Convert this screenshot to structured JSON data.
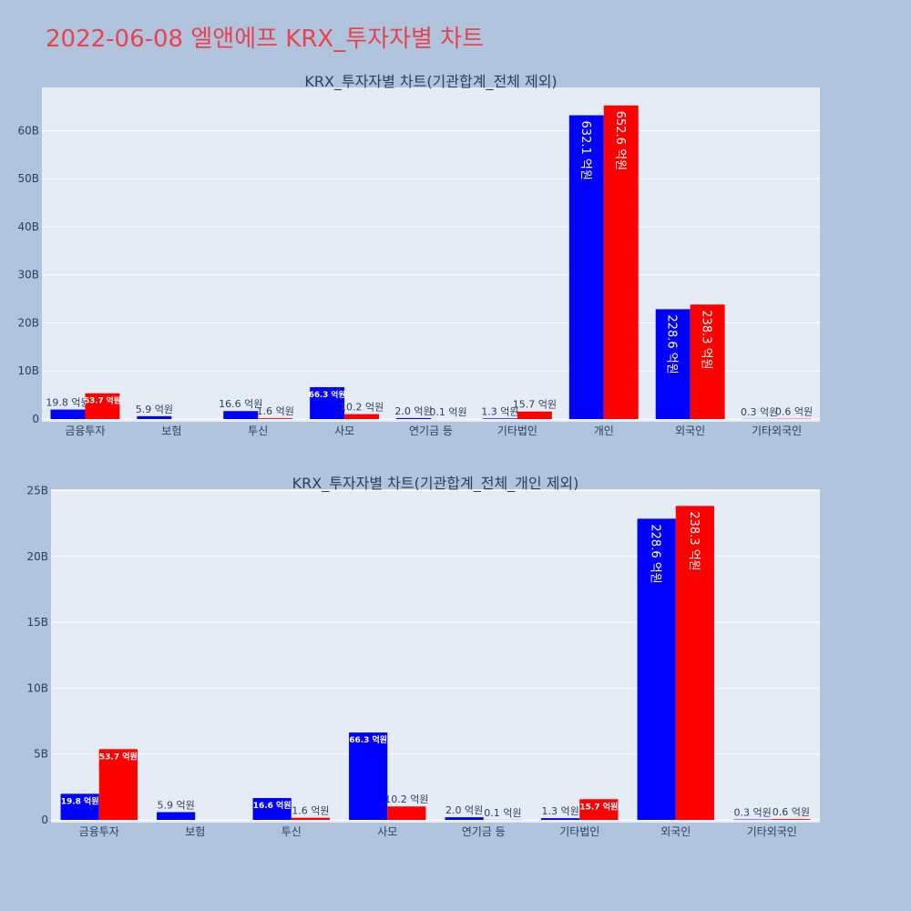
{
  "page": {
    "title": "2022-06-08 엘앤에프 KRX_투자자별 차트"
  },
  "colors": {
    "background": "#b0c4de",
    "plot_bg": "#e5ecf6",
    "sell": "#0000ff",
    "buy": "#ff0000",
    "title": "#e8424f"
  },
  "chart_data": [
    {
      "type": "bar",
      "title": "KRX_투자자별 차트(기관합계_전체 제외)",
      "categories": [
        "금융투자",
        "보험",
        "투신",
        "사모",
        "연기금 등",
        "기타법인",
        "개인",
        "외국인",
        "기타외국인"
      ],
      "yticks": [
        "0",
        "10B",
        "20B",
        "30B",
        "40B",
        "50B",
        "60B"
      ],
      "ylim": [
        0,
        69000000000
      ],
      "series": [
        {
          "values": [
            1980000000,
            590000000,
            1660000000,
            6630000000,
            200000000,
            130000000,
            63210000000,
            22860000000,
            30000000
          ],
          "labels": [
            "19.8 억원",
            "5.9 억원",
            "16.6 억원",
            "66.3 억원",
            "2.0 억원",
            "1.3 억원",
            "632.1 억원",
            "228.6 억원",
            "0.3 억원"
          ]
        },
        {
          "values": [
            5370000000,
            0,
            160000000,
            1020000000,
            10000000,
            1570000000,
            65260000000,
            23830000000,
            60000000
          ],
          "labels": [
            "53.7 억원",
            "",
            "1.6 억원",
            "10.2 억원",
            "0.1 억원",
            "15.7 억원",
            "652.6 억원",
            "238.3 억원",
            "0.6 억원"
          ]
        }
      ]
    },
    {
      "type": "bar",
      "title": "KRX_투자자별 차트(기관합계_전체_개인 제외)",
      "categories": [
        "금융투자",
        "보험",
        "투신",
        "사모",
        "연기금 등",
        "기타법인",
        "외국인",
        "기타외국인"
      ],
      "yticks": [
        "0",
        "5B",
        "10B",
        "15B",
        "20B",
        "25B"
      ],
      "ylim": [
        0,
        25100000000
      ],
      "series": [
        {
          "values": [
            1980000000,
            590000000,
            1660000000,
            6630000000,
            200000000,
            130000000,
            22860000000,
            30000000
          ],
          "labels": [
            "19.8 억원",
            "5.9 억원",
            "16.6 억원",
            "66.3 억원",
            "2.0 억원",
            "1.3 억원",
            "228.6 억원",
            "0.3 억원"
          ]
        },
        {
          "values": [
            5370000000,
            0,
            160000000,
            1020000000,
            10000000,
            1570000000,
            23830000000,
            60000000
          ],
          "labels": [
            "53.7 억원",
            "",
            "1.6 억원",
            "10.2 억원",
            "0.1 억원",
            "15.7 억원",
            "238.3 억원",
            "0.6 억원"
          ]
        }
      ]
    }
  ]
}
